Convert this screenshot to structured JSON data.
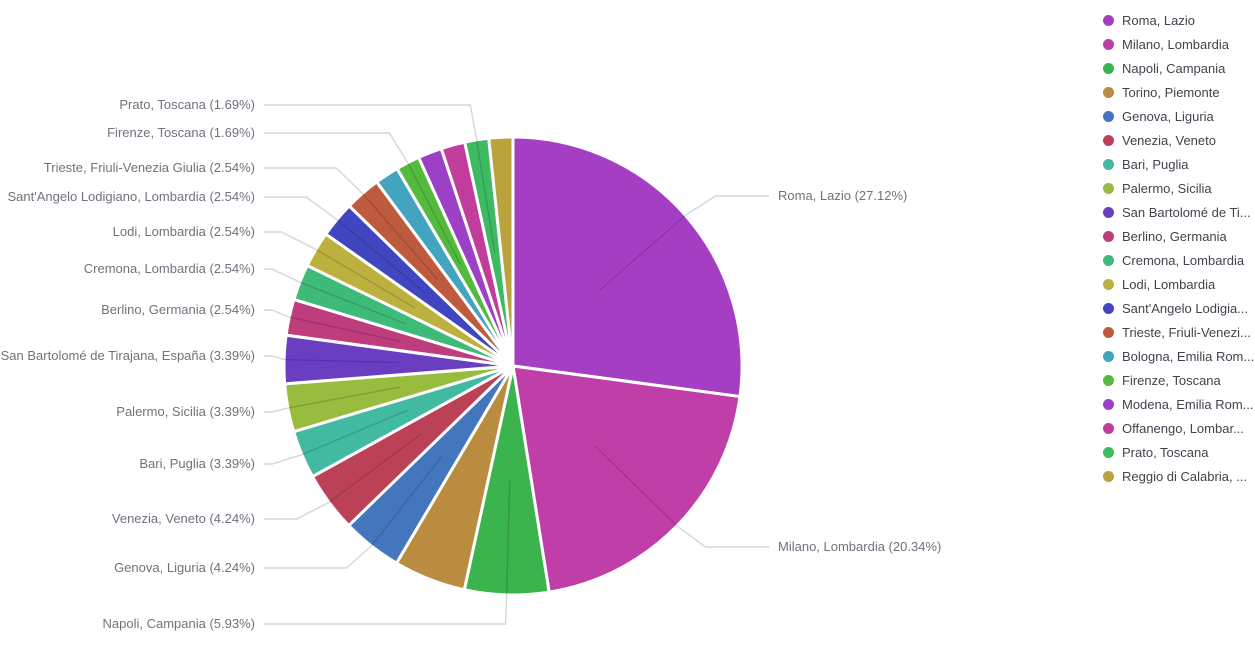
{
  "page": {
    "background": "#FFFFFF"
  },
  "styles": {
    "callout_text_color": "#6E737D",
    "legend_text_color": "#3F444D",
    "leader_line_color": "#D4D6E0",
    "slice_border_color": "#FFFFFF"
  },
  "chart_data": {
    "type": "pie",
    "title": "",
    "legend_position": "right",
    "labels_show_percent": true,
    "slices": [
      {
        "legend_label": "Roma, Lazio",
        "percent": 27.12,
        "color": "#A43FC4",
        "callout_label": "Roma, Lazio (27.12%)"
      },
      {
        "legend_label": "Milano, Lombardia",
        "percent": 20.34,
        "color": "#BF3EA8",
        "callout_label": "Milano, Lombardia (20.34%)"
      },
      {
        "legend_label": "Napoli, Campania",
        "percent": 5.93,
        "color": "#3BB44D",
        "callout_label": "Napoli, Campania (5.93%)"
      },
      {
        "legend_label": "Torino, Piemonte",
        "percent": 5.08,
        "color": "#B98C40",
        "callout_label": null
      },
      {
        "legend_label": "Genova, Liguria",
        "percent": 4.24,
        "color": "#4476BE",
        "callout_label": "Genova, Liguria (4.24%)"
      },
      {
        "legend_label": "Venezia, Veneto",
        "percent": 4.24,
        "color": "#BC4157",
        "callout_label": "Venezia, Veneto (4.24%)"
      },
      {
        "legend_label": "Bari, Puglia",
        "percent": 3.39,
        "color": "#42B9A1",
        "callout_label": "Bari, Puglia (3.39%)"
      },
      {
        "legend_label": "Palermo, Sicilia",
        "percent": 3.39,
        "color": "#98BC3E",
        "callout_label": "Palermo, Sicilia (3.39%)"
      },
      {
        "legend_label": "San Bartolomé de Ti...",
        "percent": 3.39,
        "color": "#6A3EC1",
        "callout_label": "San Bartolomé de Tirajana, España (3.39%)"
      },
      {
        "legend_label": "Berlino, Germania",
        "percent": 2.54,
        "color": "#BE3D7D",
        "callout_label": "Berlino, Germania (2.54%)"
      },
      {
        "legend_label": "Cremona, Lombardia",
        "percent": 2.54,
        "color": "#3EBA79",
        "callout_label": "Cremona, Lombardia (2.54%)"
      },
      {
        "legend_label": "Lodi, Lombardia",
        "percent": 2.54,
        "color": "#BCB13E",
        "callout_label": "Lodi, Lombardia (2.54%)"
      },
      {
        "legend_label": "Sant'Angelo Lodigia...",
        "percent": 2.54,
        "color": "#4145BF",
        "callout_label": "Sant'Angelo Lodigiano, Lombardia (2.54%)"
      },
      {
        "legend_label": "Trieste, Friuli-Venezi...",
        "percent": 2.54,
        "color": "#BE5B3E",
        "callout_label": "Trieste, Friuli-Venezia Giulia (2.54%)"
      },
      {
        "legend_label": "Bologna, Emilia Rom...",
        "percent": 1.69,
        "color": "#43A4BF",
        "callout_label": null
      },
      {
        "legend_label": "Firenze, Toscana",
        "percent": 1.69,
        "color": "#54BA3E",
        "callout_label": "Firenze, Toscana (1.69%)"
      },
      {
        "legend_label": "Modena, Emilia Rom...",
        "percent": 1.69,
        "color": "#9C40C6",
        "callout_label": null
      },
      {
        "legend_label": "Offanengo, Lombar...",
        "percent": 1.69,
        "color": "#C23D9B",
        "callout_label": null
      },
      {
        "legend_label": "Prato, Toscana",
        "percent": 1.69,
        "color": "#3EBA63",
        "callout_label": "Prato, Toscana (1.69%)"
      },
      {
        "legend_label": "Reggio di Calabria, ...",
        "percent": 1.69,
        "color": "#BAA33D",
        "callout_label": null
      }
    ]
  }
}
